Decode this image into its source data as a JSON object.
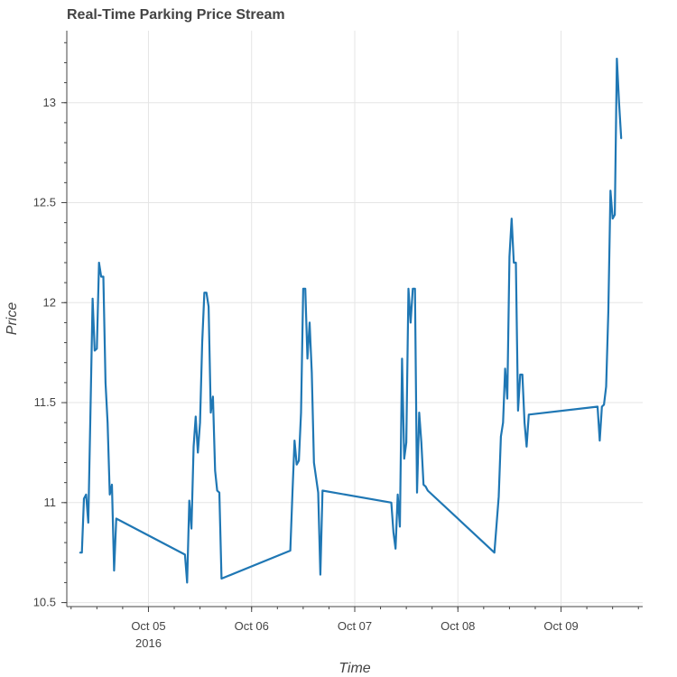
{
  "chart_data": {
    "type": "line",
    "title": "Real-Time Parking Price Stream",
    "xlabel": "Time",
    "ylabel": "Price",
    "x_tick_labels": [
      "Oct 05",
      "Oct 06",
      "Oct 07",
      "Oct 08",
      "Oct 09"
    ],
    "x_tick_sublabel": "2016",
    "y_ticks": [
      10.5,
      11,
      11.5,
      12,
      12.5,
      13
    ],
    "y_tick_labels": [
      "10.5",
      "11",
      "11.5",
      "12",
      "12.5",
      "13"
    ],
    "xlim": [
      "2016-10-04 05:00",
      "2016-10-09 19:00"
    ],
    "ylim": [
      10.48,
      13.36
    ],
    "grid": true,
    "series": [
      {
        "color": "#1f77b4",
        "points": [
          [
            "2016-10-04 08:00",
            10.75
          ],
          [
            "2016-10-04 08:30",
            10.75
          ],
          [
            "2016-10-04 09:00",
            11.02
          ],
          [
            "2016-10-04 09:30",
            11.04
          ],
          [
            "2016-10-04 10:00",
            10.9
          ],
          [
            "2016-10-04 10:30",
            11.45
          ],
          [
            "2016-10-04 11:00",
            12.02
          ],
          [
            "2016-10-04 11:30",
            11.76
          ],
          [
            "2016-10-04 12:00",
            11.77
          ],
          [
            "2016-10-04 12:30",
            12.2
          ],
          [
            "2016-10-04 13:00",
            12.13
          ],
          [
            "2016-10-04 13:30",
            12.13
          ],
          [
            "2016-10-04 14:00",
            11.6
          ],
          [
            "2016-10-04 14:30",
            11.4
          ],
          [
            "2016-10-04 15:00",
            11.04
          ],
          [
            "2016-10-04 15:30",
            11.09
          ],
          [
            "2016-10-04 16:00",
            10.66
          ],
          [
            "2016-10-04 16:30",
            10.92
          ],
          [
            "2016-10-05 08:30",
            10.74
          ],
          [
            "2016-10-05 09:00",
            10.6
          ],
          [
            "2016-10-05 09:30",
            11.01
          ],
          [
            "2016-10-05 10:00",
            10.87
          ],
          [
            "2016-10-05 10:30",
            11.28
          ],
          [
            "2016-10-05 11:00",
            11.43
          ],
          [
            "2016-10-05 11:30",
            11.25
          ],
          [
            "2016-10-05 12:00",
            11.4
          ],
          [
            "2016-10-05 12:30",
            11.8
          ],
          [
            "2016-10-05 13:00",
            12.05
          ],
          [
            "2016-10-05 13:30",
            12.05
          ],
          [
            "2016-10-05 14:00",
            11.98
          ],
          [
            "2016-10-05 14:30",
            11.45
          ],
          [
            "2016-10-05 15:00",
            11.53
          ],
          [
            "2016-10-05 15:30",
            11.16
          ],
          [
            "2016-10-05 16:00",
            11.06
          ],
          [
            "2016-10-05 16:30",
            11.05
          ],
          [
            "2016-10-05 17:00",
            10.62
          ],
          [
            "2016-10-06 09:00",
            10.76
          ],
          [
            "2016-10-06 09:30",
            11.05
          ],
          [
            "2016-10-06 10:00",
            11.31
          ],
          [
            "2016-10-06 10:30",
            11.19
          ],
          [
            "2016-10-06 11:00",
            11.21
          ],
          [
            "2016-10-06 11:30",
            11.45
          ],
          [
            "2016-10-06 12:00",
            12.07
          ],
          [
            "2016-10-06 12:30",
            12.07
          ],
          [
            "2016-10-06 13:00",
            11.72
          ],
          [
            "2016-10-06 13:30",
            11.9
          ],
          [
            "2016-10-06 14:00",
            11.65
          ],
          [
            "2016-10-06 14:30",
            11.2
          ],
          [
            "2016-10-06 15:30",
            11.05
          ],
          [
            "2016-10-06 16:00",
            10.64
          ],
          [
            "2016-10-06 16:30",
            11.06
          ],
          [
            "2016-10-07 08:30",
            11.0
          ],
          [
            "2016-10-07 09:00",
            10.85
          ],
          [
            "2016-10-07 09:30",
            10.77
          ],
          [
            "2016-10-07 10:00",
            11.04
          ],
          [
            "2016-10-07 10:30",
            10.88
          ],
          [
            "2016-10-07 11:00",
            11.72
          ],
          [
            "2016-10-07 11:30",
            11.22
          ],
          [
            "2016-10-07 12:00",
            11.3
          ],
          [
            "2016-10-07 12:30",
            12.07
          ],
          [
            "2016-10-07 13:00",
            11.9
          ],
          [
            "2016-10-07 13:30",
            12.07
          ],
          [
            "2016-10-07 14:00",
            12.07
          ],
          [
            "2016-10-07 14:30",
            11.05
          ],
          [
            "2016-10-07 15:00",
            11.45
          ],
          [
            "2016-10-07 15:30",
            11.3
          ],
          [
            "2016-10-07 16:00",
            11.09
          ],
          [
            "2016-10-07 16:30",
            11.08
          ],
          [
            "2016-10-07 17:00",
            11.06
          ],
          [
            "2016-10-08 08:30",
            10.75
          ],
          [
            "2016-10-08 09:30",
            11.03
          ],
          [
            "2016-10-08 10:00",
            11.33
          ],
          [
            "2016-10-08 10:30",
            11.4
          ],
          [
            "2016-10-08 11:00",
            11.67
          ],
          [
            "2016-10-08 11:30",
            11.52
          ],
          [
            "2016-10-08 12:00",
            12.23
          ],
          [
            "2016-10-08 12:30",
            12.42
          ],
          [
            "2016-10-08 13:00",
            12.2
          ],
          [
            "2016-10-08 13:30",
            12.2
          ],
          [
            "2016-10-08 14:00",
            11.46
          ],
          [
            "2016-10-08 14:30",
            11.64
          ],
          [
            "2016-10-08 15:00",
            11.64
          ],
          [
            "2016-10-08 15:30",
            11.4
          ],
          [
            "2016-10-08 16:00",
            11.28
          ],
          [
            "2016-10-08 16:30",
            11.44
          ],
          [
            "2016-10-09 08:30",
            11.48
          ],
          [
            "2016-10-09 09:00",
            11.31
          ],
          [
            "2016-10-09 09:30",
            11.48
          ],
          [
            "2016-10-09 10:00",
            11.49
          ],
          [
            "2016-10-09 10:30",
            11.58
          ],
          [
            "2016-10-09 11:00",
            11.95
          ],
          [
            "2016-10-09 11:30",
            12.56
          ],
          [
            "2016-10-09 12:00",
            12.42
          ],
          [
            "2016-10-09 12:30",
            12.44
          ],
          [
            "2016-10-09 13:00",
            13.22
          ],
          [
            "2016-10-09 13:30",
            13.0
          ],
          [
            "2016-10-09 14:00",
            12.82
          ]
        ]
      }
    ]
  }
}
